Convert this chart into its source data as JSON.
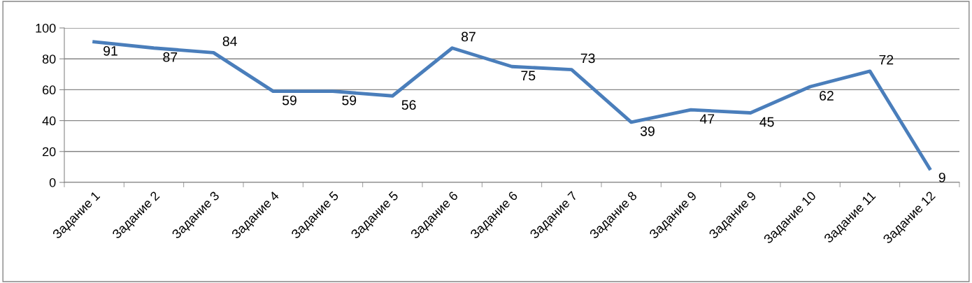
{
  "chart_data": {
    "type": "line",
    "categories": [
      "Задание 1",
      "Задание 2",
      "Задание 3",
      "Задание 4",
      "Задание 5",
      "Задание 5",
      "Задание 6",
      "Задание 6",
      "Задание 7",
      "Задание 8",
      "Задание 9",
      "Задание 9",
      "Задание 10",
      "Задание 11",
      "Задание 12"
    ],
    "series": [
      {
        "color": "#4a7ebb",
        "values": [
          91,
          87,
          84,
          59,
          59,
          56,
          87,
          75,
          73,
          39,
          47,
          45,
          62,
          72,
          9
        ]
      }
    ],
    "ylim": [
      0,
      100
    ],
    "yticks": [
      0,
      20,
      40,
      60,
      80,
      100
    ],
    "grid": "y",
    "legend": false,
    "marker": "none",
    "line_style": "solid",
    "data_labels": true
  }
}
